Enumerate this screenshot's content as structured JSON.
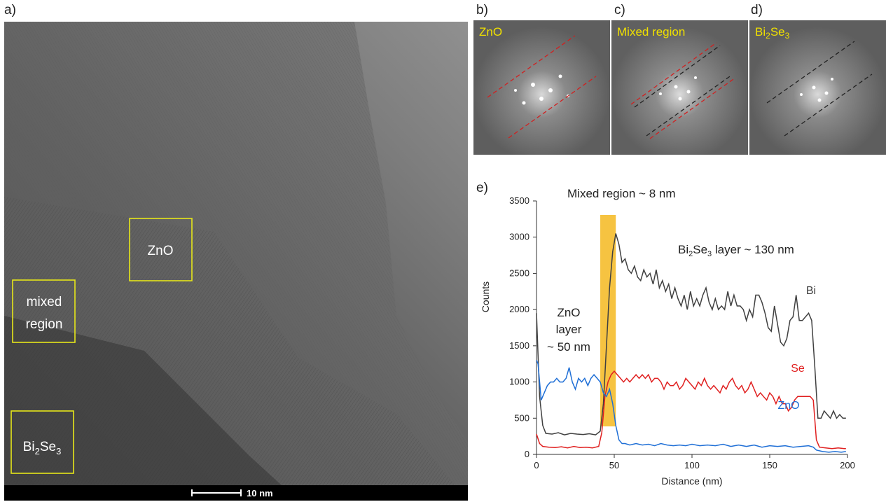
{
  "panels": {
    "a": "a)",
    "b": "b)",
    "c": "c)",
    "d": "d)",
    "e": "e)"
  },
  "tem": {
    "boxes": {
      "zno": "ZnO",
      "mixed_1": "mixed",
      "mixed_2": "region",
      "bise_main": "Bi",
      "bise_sub1": "2",
      "bise_mid": "Se",
      "bise_sub2": "3"
    },
    "scalebar": "10 nm",
    "box_color": "#e6e619"
  },
  "fft": {
    "b": "ZnO",
    "c": "Mixed region",
    "d_main": "Bi",
    "d_sub1": "2",
    "d_mid": "Se",
    "d_sub2": "3",
    "label_color": "#f0e000"
  },
  "chart_data": {
    "type": "line",
    "xlabel": "Distance (nm)",
    "ylabel": "Counts",
    "xlim": [
      0,
      200
    ],
    "ylim": [
      0,
      3500
    ],
    "xticks": [
      "0",
      "50",
      "100",
      "150",
      "200"
    ],
    "yticks": [
      "0",
      "500",
      "1000",
      "1500",
      "2000",
      "2500",
      "3000",
      "3500"
    ],
    "highlight_band": {
      "x": [
        41,
        51
      ],
      "color": "#f5b820"
    },
    "annotations": {
      "mixed": "Mixed region ~ 8 nm",
      "bise_a": "Bi",
      "bise_b": "2",
      "bise_c": "Se",
      "bise_d": "3",
      "bise_e": " layer ~ 130 nm",
      "zno1": "ZnO",
      "zno2": "layer",
      "zno3": "~ 50 nm"
    },
    "series": [
      {
        "name": "Bi",
        "color": "#404040",
        "points": [
          [
            0,
            1950
          ],
          [
            2,
            800
          ],
          [
            4,
            400
          ],
          [
            6,
            290
          ],
          [
            10,
            280
          ],
          [
            14,
            300
          ],
          [
            18,
            270
          ],
          [
            22,
            290
          ],
          [
            26,
            280
          ],
          [
            30,
            275
          ],
          [
            34,
            285
          ],
          [
            38,
            270
          ],
          [
            41,
            320
          ],
          [
            43,
            700
          ],
          [
            45,
            1500
          ],
          [
            47,
            2300
          ],
          [
            49,
            2800
          ],
          [
            51,
            3050
          ],
          [
            53,
            2900
          ],
          [
            55,
            2650
          ],
          [
            57,
            2700
          ],
          [
            59,
            2550
          ],
          [
            61,
            2500
          ],
          [
            63,
            2600
          ],
          [
            65,
            2450
          ],
          [
            67,
            2400
          ],
          [
            69,
            2550
          ],
          [
            71,
            2450
          ],
          [
            73,
            2500
          ],
          [
            75,
            2350
          ],
          [
            77,
            2550
          ],
          [
            79,
            2300
          ],
          [
            81,
            2400
          ],
          [
            83,
            2250
          ],
          [
            85,
            2350
          ],
          [
            87,
            2150
          ],
          [
            89,
            2300
          ],
          [
            91,
            2150
          ],
          [
            93,
            2050
          ],
          [
            95,
            2200
          ],
          [
            97,
            2000
          ],
          [
            99,
            2250
          ],
          [
            101,
            2050
          ],
          [
            103,
            2150
          ],
          [
            105,
            2050
          ],
          [
            107,
            2200
          ],
          [
            109,
            2300
          ],
          [
            111,
            2100
          ],
          [
            113,
            2000
          ],
          [
            115,
            2150
          ],
          [
            117,
            2000
          ],
          [
            119,
            2050
          ],
          [
            121,
            2000
          ],
          [
            123,
            2250
          ],
          [
            125,
            2050
          ],
          [
            127,
            2200
          ],
          [
            129,
            2050
          ],
          [
            131,
            2050
          ],
          [
            133,
            2000
          ],
          [
            135,
            1850
          ],
          [
            137,
            2000
          ],
          [
            139,
            1900
          ],
          [
            141,
            2200
          ],
          [
            143,
            2200
          ],
          [
            145,
            2100
          ],
          [
            147,
            1950
          ],
          [
            149,
            1750
          ],
          [
            151,
            1700
          ],
          [
            153,
            2050
          ],
          [
            155,
            1800
          ],
          [
            157,
            1550
          ],
          [
            159,
            1500
          ],
          [
            161,
            1600
          ],
          [
            163,
            1850
          ],
          [
            165,
            1900
          ],
          [
            167,
            2200
          ],
          [
            169,
            1850
          ],
          [
            171,
            1850
          ],
          [
            173,
            1900
          ],
          [
            175,
            1950
          ],
          [
            177,
            1850
          ],
          [
            179,
            1200
          ],
          [
            181,
            500
          ],
          [
            183,
            500
          ],
          [
            185,
            600
          ],
          [
            187,
            550
          ],
          [
            189,
            500
          ],
          [
            191,
            600
          ],
          [
            193,
            500
          ],
          [
            195,
            550
          ],
          [
            197,
            500
          ],
          [
            199,
            500
          ]
        ]
      },
      {
        "name": "Se",
        "color": "#e02020",
        "points": [
          [
            0,
            280
          ],
          [
            2,
            150
          ],
          [
            4,
            110
          ],
          [
            8,
            100
          ],
          [
            12,
            95
          ],
          [
            16,
            105
          ],
          [
            20,
            90
          ],
          [
            24,
            110
          ],
          [
            28,
            95
          ],
          [
            32,
            100
          ],
          [
            36,
            90
          ],
          [
            40,
            110
          ],
          [
            42,
            300
          ],
          [
            44,
            800
          ],
          [
            46,
            1000
          ],
          [
            48,
            1100
          ],
          [
            50,
            1150
          ],
          [
            52,
            1100
          ],
          [
            54,
            1050
          ],
          [
            56,
            1000
          ],
          [
            58,
            1050
          ],
          [
            60,
            1000
          ],
          [
            62,
            1050
          ],
          [
            64,
            1100
          ],
          [
            66,
            1050
          ],
          [
            68,
            1100
          ],
          [
            70,
            1050
          ],
          [
            72,
            1100
          ],
          [
            74,
            1000
          ],
          [
            76,
            1050
          ],
          [
            78,
            1050
          ],
          [
            80,
            1000
          ],
          [
            82,
            900
          ],
          [
            84,
            1000
          ],
          [
            86,
            950
          ],
          [
            88,
            950
          ],
          [
            90,
            1000
          ],
          [
            92,
            900
          ],
          [
            94,
            950
          ],
          [
            96,
            1050
          ],
          [
            98,
            1000
          ],
          [
            100,
            950
          ],
          [
            102,
            900
          ],
          [
            104,
            1000
          ],
          [
            106,
            950
          ],
          [
            108,
            1050
          ],
          [
            110,
            950
          ],
          [
            112,
            900
          ],
          [
            114,
            950
          ],
          [
            116,
            900
          ],
          [
            118,
            850
          ],
          [
            120,
            950
          ],
          [
            122,
            900
          ],
          [
            124,
            1000
          ],
          [
            126,
            1050
          ],
          [
            128,
            950
          ],
          [
            130,
            900
          ],
          [
            132,
            950
          ],
          [
            134,
            850
          ],
          [
            136,
            900
          ],
          [
            138,
            1000
          ],
          [
            140,
            900
          ],
          [
            142,
            800
          ],
          [
            144,
            850
          ],
          [
            146,
            800
          ],
          [
            148,
            750
          ],
          [
            150,
            850
          ],
          [
            152,
            800
          ],
          [
            154,
            700
          ],
          [
            156,
            800
          ],
          [
            158,
            700
          ],
          [
            160,
            700
          ],
          [
            162,
            600
          ],
          [
            164,
            650
          ],
          [
            166,
            750
          ],
          [
            168,
            800
          ],
          [
            170,
            800
          ],
          [
            172,
            800
          ],
          [
            174,
            800
          ],
          [
            176,
            800
          ],
          [
            178,
            750
          ],
          [
            180,
            200
          ],
          [
            182,
            100
          ],
          [
            186,
            90
          ],
          [
            190,
            80
          ],
          [
            194,
            90
          ],
          [
            198,
            80
          ],
          [
            199,
            80
          ]
        ]
      },
      {
        "name": "ZnO",
        "color": "#1f6fd6",
        "points": [
          [
            0,
            1300
          ],
          [
            1,
            1250
          ],
          [
            3,
            750
          ],
          [
            5,
            850
          ],
          [
            7,
            950
          ],
          [
            9,
            1000
          ],
          [
            11,
            1000
          ],
          [
            13,
            1050
          ],
          [
            15,
            1000
          ],
          [
            17,
            1000
          ],
          [
            19,
            1050
          ],
          [
            21,
            1200
          ],
          [
            23,
            1000
          ],
          [
            25,
            900
          ],
          [
            27,
            1050
          ],
          [
            29,
            1000
          ],
          [
            31,
            1050
          ],
          [
            33,
            950
          ],
          [
            35,
            1050
          ],
          [
            37,
            1100
          ],
          [
            39,
            1050
          ],
          [
            41,
            1000
          ],
          [
            43,
            850
          ],
          [
            45,
            800
          ],
          [
            47,
            900
          ],
          [
            49,
            700
          ],
          [
            51,
            400
          ],
          [
            53,
            200
          ],
          [
            55,
            150
          ],
          [
            57,
            150
          ],
          [
            60,
            130
          ],
          [
            64,
            150
          ],
          [
            68,
            130
          ],
          [
            72,
            140
          ],
          [
            76,
            120
          ],
          [
            80,
            150
          ],
          [
            84,
            130
          ],
          [
            88,
            120
          ],
          [
            92,
            130
          ],
          [
            96,
            120
          ],
          [
            100,
            140
          ],
          [
            105,
            120
          ],
          [
            110,
            130
          ],
          [
            115,
            120
          ],
          [
            120,
            140
          ],
          [
            125,
            110
          ],
          [
            130,
            130
          ],
          [
            135,
            110
          ],
          [
            140,
            130
          ],
          [
            145,
            100
          ],
          [
            150,
            120
          ],
          [
            155,
            110
          ],
          [
            160,
            120
          ],
          [
            165,
            100
          ],
          [
            170,
            110
          ],
          [
            175,
            120
          ],
          [
            178,
            100
          ],
          [
            180,
            60
          ],
          [
            184,
            40
          ],
          [
            188,
            30
          ],
          [
            192,
            40
          ],
          [
            196,
            30
          ],
          [
            199,
            40
          ]
        ]
      }
    ],
    "series_labels": [
      "Bi",
      "Se",
      "ZnO"
    ]
  }
}
